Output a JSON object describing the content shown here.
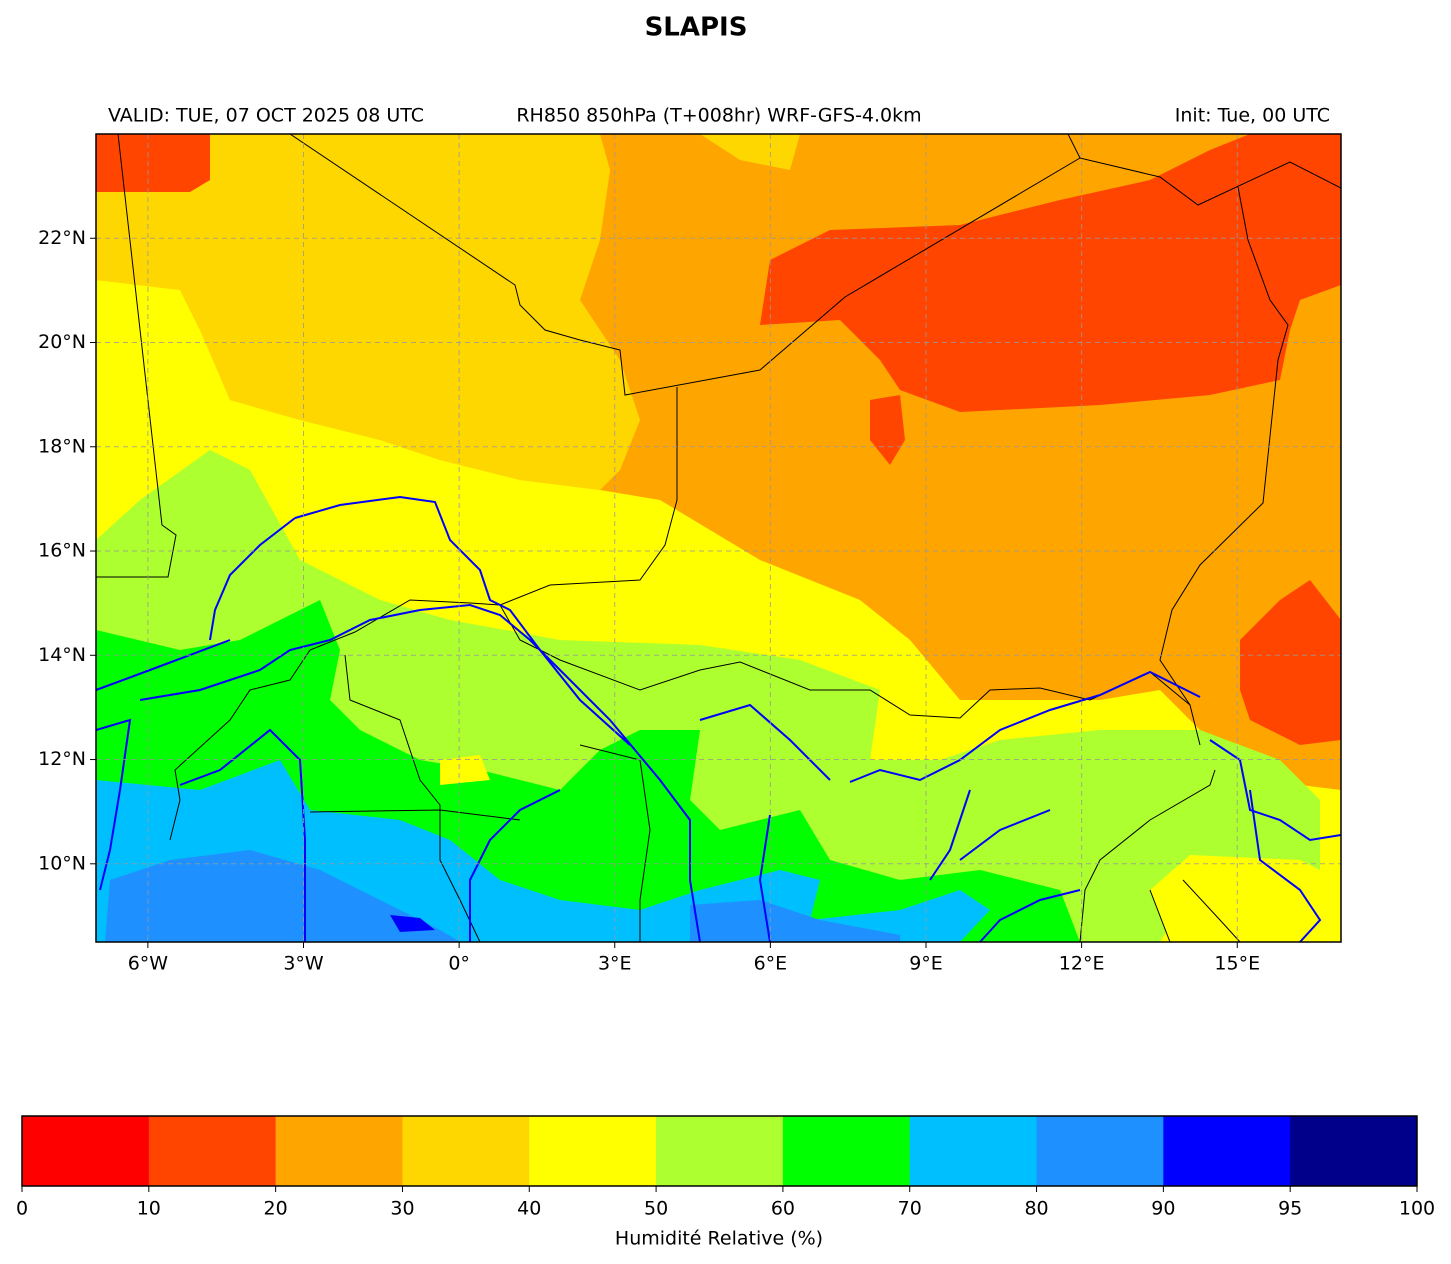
{
  "chart_data": {
    "type": "map",
    "title": "SLAPIS",
    "subtitle_left": "VALID: TUE, 07 OCT 2025 08 UTC",
    "subtitle_center": "RH850 850hPa (T+008hr) WRF-GFS-4.0km",
    "subtitle_right": "Init: Tue, 00 UTC",
    "xlim": [
      -7,
      17
    ],
    "ylim": [
      8.5,
      24
    ],
    "xticks": [
      {
        "value": -6,
        "label": "6°W"
      },
      {
        "value": -3,
        "label": "3°W"
      },
      {
        "value": 0,
        "label": "0°"
      },
      {
        "value": 3,
        "label": "3°E"
      },
      {
        "value": 6,
        "label": "6°E"
      },
      {
        "value": 9,
        "label": "9°E"
      },
      {
        "value": 12,
        "label": "12°E"
      },
      {
        "value": 15,
        "label": "15°E"
      }
    ],
    "yticks": [
      {
        "value": 10,
        "label": "10°N"
      },
      {
        "value": 12,
        "label": "12°N"
      },
      {
        "value": 14,
        "label": "14°N"
      },
      {
        "value": 16,
        "label": "16°N"
      },
      {
        "value": 18,
        "label": "18°N"
      },
      {
        "value": 20,
        "label": "20°N"
      },
      {
        "value": 22,
        "label": "22°N"
      }
    ],
    "grid": true,
    "colorbar": {
      "label": "Humidité Relative (%)",
      "levels": [
        0,
        10,
        20,
        30,
        40,
        50,
        60,
        70,
        80,
        90,
        95,
        100
      ],
      "colors": [
        "#ff0000",
        "#ff4500",
        "#ffa500",
        "#ffd700",
        "#ffff00",
        "#adff2f",
        "#00ff00",
        "#00bfff",
        "#1e90ff",
        "#0000ff",
        "#00008b"
      ]
    }
  }
}
